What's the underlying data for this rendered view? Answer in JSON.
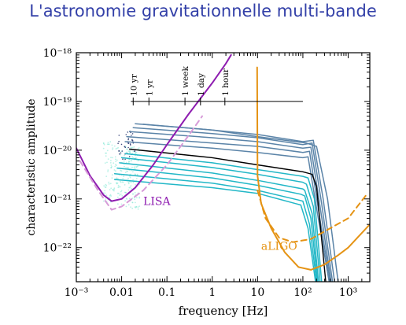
{
  "slide": {
    "title": "L'astronomie gravitationnelle multi-bande"
  },
  "colors": {
    "lisa": "#8e1cb0",
    "lisa_dashed": "#d79bd8",
    "aligo": "#e59314",
    "track_blue": "#5b84a8",
    "track_cyan": "#22b7c7",
    "track_black": "#000000",
    "scatter_light": "#7fe8d4",
    "scatter_dark": "#0f1e5e"
  },
  "chart_data": {
    "type": "line",
    "title": "",
    "xlabel": "frequency [Hz]",
    "ylabel": "characteristic amplitude",
    "x_scale": "log",
    "y_scale": "log",
    "xlim": [
      0.001,
      3000
    ],
    "ylim": [
      2e-23,
      1e-18
    ],
    "x_ticks": [
      {
        "value": 0.001,
        "label": "10⁻³"
      },
      {
        "value": 0.01,
        "label": "0.01"
      },
      {
        "value": 0.1,
        "label": "0.1"
      },
      {
        "value": 1,
        "label": "1"
      },
      {
        "value": 10,
        "label": "10"
      },
      {
        "value": 100,
        "label": "10²"
      },
      {
        "value": 1000,
        "label": "10³"
      }
    ],
    "y_ticks": [
      {
        "value": 1e-18,
        "label": "10⁻¹⁸"
      },
      {
        "value": 1e-19,
        "label": "10⁻¹⁹"
      },
      {
        "value": 1e-20,
        "label": "10⁻²⁰"
      },
      {
        "value": 1e-21,
        "label": "10⁻²¹"
      },
      {
        "value": 1e-22,
        "label": "10⁻²²"
      }
    ],
    "time_to_merger": {
      "amplitude": 1e-19,
      "x_range": [
        0.016,
        100
      ],
      "marks": [
        {
          "label": "10 yr",
          "frequency": 0.018
        },
        {
          "label": "1 yr",
          "frequency": 0.04
        },
        {
          "label": "1 week",
          "frequency": 0.25
        },
        {
          "label": "1 day",
          "frequency": 0.55
        },
        {
          "label": "1 hour",
          "frequency": 1.9
        }
      ]
    },
    "series": [
      {
        "name": "LISA",
        "style": "sensitivity",
        "color": "#8e1cb0",
        "points": [
          [
            0.001,
            1.1e-20
          ],
          [
            0.002,
            3e-21
          ],
          [
            0.004,
            1.2e-21
          ],
          [
            0.006,
            9e-22
          ],
          [
            0.01,
            1e-21
          ],
          [
            0.02,
            1.7e-21
          ],
          [
            0.05,
            5e-21
          ],
          [
            0.1,
            1.3e-20
          ],
          [
            0.3,
            5.5e-20
          ],
          [
            1,
            2.4e-19
          ],
          [
            2,
            6e-19
          ],
          [
            2.6,
            9e-19
          ]
        ]
      },
      {
        "style": "sensitivity-dashed",
        "color": "#d79bd8",
        "points": [
          [
            0.0012,
            6e-21
          ],
          [
            0.003,
            1.5e-21
          ],
          [
            0.006,
            6e-22
          ],
          [
            0.01,
            7e-22
          ],
          [
            0.03,
            1.5e-21
          ],
          [
            0.1,
            5e-21
          ],
          [
            0.3,
            2e-20
          ],
          [
            0.6,
            5e-20
          ]
        ]
      },
      {
        "name": "aLIGO",
        "style": "sensitivity",
        "color": "#e59314",
        "points": [
          [
            9.8,
            5e-19
          ],
          [
            10,
            3e-21
          ],
          [
            12,
            8e-22
          ],
          [
            20,
            2.5e-22
          ],
          [
            40,
            8e-23
          ],
          [
            80,
            4e-23
          ],
          [
            150,
            3.5e-23
          ],
          [
            300,
            4.5e-23
          ],
          [
            600,
            7e-23
          ],
          [
            1000,
            1e-22
          ],
          [
            3000,
            3e-22
          ]
        ]
      },
      {
        "style": "sensitivity-dashed",
        "color": "#e59314",
        "points": [
          [
            10,
            1.5e-21
          ],
          [
            15,
            4e-22
          ],
          [
            30,
            1.6e-22
          ],
          [
            60,
            1.3e-22
          ],
          [
            150,
            1.5e-22
          ],
          [
            400,
            2.5e-22
          ],
          [
            1000,
            4e-22
          ],
          [
            2500,
            1.2e-21
          ]
        ]
      },
      {
        "style": "track",
        "color": "#5b84a8",
        "points": [
          [
            0.02,
            3.5e-20
          ],
          [
            1,
            2.6e-20
          ],
          [
            10,
            2.1e-20
          ],
          [
            100,
            1.5e-20
          ],
          [
            170,
            1.6e-20
          ],
          [
            280,
            1e-21
          ],
          [
            500,
            2e-23
          ]
        ]
      },
      {
        "style": "track",
        "color": "#5b84a8",
        "points": [
          [
            0.018,
            2.9e-20
          ],
          [
            1,
            2.2e-20
          ],
          [
            10,
            1.8e-20
          ],
          [
            100,
            1.3e-20
          ],
          [
            160,
            1.4e-20
          ],
          [
            260,
            8e-22
          ],
          [
            450,
            2e-23
          ]
        ]
      },
      {
        "style": "track",
        "color": "#5b84a8",
        "points": [
          [
            0.015,
            2.4e-20
          ],
          [
            1,
            1.8e-20
          ],
          [
            10,
            1.5e-20
          ],
          [
            100,
            1.1e-20
          ],
          [
            150,
            1.15e-20
          ],
          [
            240,
            7e-22
          ],
          [
            420,
            2e-23
          ]
        ]
      },
      {
        "style": "track",
        "color": "#5b84a8",
        "points": [
          [
            0.013,
            1.9e-20
          ],
          [
            1,
            1.4e-20
          ],
          [
            10,
            1.2e-20
          ],
          [
            100,
            9e-21
          ],
          [
            140,
            9.5e-21
          ],
          [
            220,
            6e-22
          ],
          [
            400,
            2e-23
          ]
        ]
      },
      {
        "style": "track",
        "color": "#5b84a8",
        "points": [
          [
            0.012,
            1.5e-20
          ],
          [
            1,
            1.1e-20
          ],
          [
            10,
            9e-21
          ],
          [
            100,
            7e-21
          ],
          [
            130,
            7.3e-21
          ],
          [
            210,
            5e-22
          ],
          [
            380,
            2e-23
          ]
        ]
      },
      {
        "style": "track",
        "color": "#000000",
        "points": [
          [
            0.015,
            1.05e-20
          ],
          [
            1,
            7e-21
          ],
          [
            10,
            5e-21
          ],
          [
            100,
            3.6e-21
          ],
          [
            160,
            3.2e-21
          ],
          [
            200,
            1.8e-21
          ],
          [
            320,
            2e-23
          ]
        ]
      },
      {
        "style": "track",
        "color": "#22b7c7",
        "points": [
          [
            0.012,
            8.5e-21
          ],
          [
            1,
            5.5e-21
          ],
          [
            10,
            4e-21
          ],
          [
            100,
            2.9e-21
          ],
          [
            130,
            2.7e-21
          ],
          [
            180,
            1e-21
          ],
          [
            260,
            2e-23
          ]
        ]
      },
      {
        "style": "track",
        "color": "#22b7c7",
        "points": [
          [
            0.01,
            7e-21
          ],
          [
            1,
            4.4e-21
          ],
          [
            10,
            3.2e-21
          ],
          [
            100,
            2.2e-21
          ],
          [
            120,
            2e-21
          ],
          [
            170,
            7e-22
          ],
          [
            240,
            2e-23
          ]
        ]
      },
      {
        "style": "track",
        "color": "#22b7c7",
        "points": [
          [
            0.009,
            5.5e-21
          ],
          [
            1,
            3.4e-21
          ],
          [
            10,
            2.4e-21
          ],
          [
            100,
            1.6e-21
          ],
          [
            110,
            1.5e-21
          ],
          [
            160,
            5e-22
          ],
          [
            220,
            2e-23
          ]
        ]
      },
      {
        "style": "track",
        "color": "#22b7c7",
        "points": [
          [
            0.008,
            4.3e-21
          ],
          [
            1,
            2.7e-21
          ],
          [
            10,
            1.9e-21
          ],
          [
            90,
            1.25e-21
          ],
          [
            110,
            1.15e-21
          ],
          [
            150,
            4e-22
          ],
          [
            210,
            2e-23
          ]
        ]
      },
      {
        "style": "track",
        "color": "#22b7c7",
        "points": [
          [
            0.007,
            3.3e-21
          ],
          [
            1,
            2.1e-21
          ],
          [
            10,
            1.5e-21
          ],
          [
            80,
            9.5e-22
          ],
          [
            100,
            9e-22
          ],
          [
            140,
            3e-22
          ],
          [
            200,
            2e-23
          ]
        ]
      },
      {
        "style": "track",
        "color": "#5b84a8",
        "points": [
          [
            0.03,
            3.4e-20
          ],
          [
            1,
            2.6e-20
          ],
          [
            10,
            1.9e-20
          ],
          [
            120,
            1.4e-20
          ],
          [
            200,
            1.2e-20
          ],
          [
            350,
            1e-21
          ],
          [
            600,
            2e-23
          ]
        ]
      },
      {
        "style": "track",
        "color": "#22b7c7",
        "points": [
          [
            0.007,
            2.5e-21
          ],
          [
            1,
            1.7e-21
          ],
          [
            10,
            1.3e-21
          ],
          [
            70,
            8e-22
          ],
          [
            90,
            7.5e-22
          ],
          [
            130,
            2.5e-22
          ],
          [
            190,
            2e-23
          ]
        ]
      }
    ],
    "annotations": [
      {
        "text": "LISA",
        "x": 0.03,
        "y": 7.5e-22,
        "color": "#8e1cb0"
      },
      {
        "text": "aLIGO",
        "x": 12,
        "y": 9e-23,
        "color": "#e59314"
      }
    ]
  }
}
